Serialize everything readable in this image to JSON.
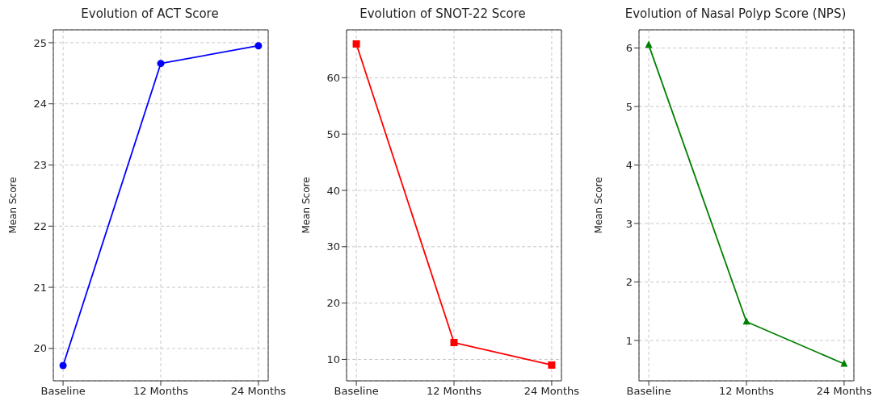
{
  "chart_data": [
    {
      "type": "line",
      "title": "Evolution of ACT Score",
      "ylabel": "Mean Score",
      "categories": [
        "Baseline",
        "12 Months",
        "24 Months"
      ],
      "series": [
        {
          "color": "#0000ff",
          "values": [
            19.72,
            24.66,
            24.95
          ]
        }
      ],
      "ylim": [
        19.47,
        25.21
      ],
      "yticks": [
        20,
        21,
        22,
        23,
        24,
        25
      ],
      "grid": true,
      "marker": "circle",
      "line_style": "solid"
    },
    {
      "type": "line",
      "title": "Evolution of SNOT-22 Score",
      "ylabel": "Mean Score",
      "categories": [
        "Baseline",
        "12 Months",
        "24 Months"
      ],
      "series": [
        {
          "color": "#ff0000",
          "values": [
            66,
            13,
            9
          ]
        }
      ],
      "ylim": [
        6.2,
        68.5
      ],
      "yticks": [
        10,
        20,
        30,
        40,
        50,
        60
      ],
      "grid": true,
      "marker": "square",
      "line_style": "solid"
    },
    {
      "type": "line",
      "title": "Evolution of Nasal Polyp Score (NPS)",
      "ylabel": "Mean Score",
      "categories": [
        "Baseline",
        "12 Months",
        "24 Months"
      ],
      "series": [
        {
          "color": "#008000",
          "values": [
            6.05,
            1.32,
            0.6
          ]
        }
      ],
      "ylim": [
        0.31,
        6.31
      ],
      "yticks": [
        1,
        2,
        3,
        4,
        5,
        6
      ],
      "grid": true,
      "marker": "triangle",
      "line_style": "solid"
    }
  ]
}
